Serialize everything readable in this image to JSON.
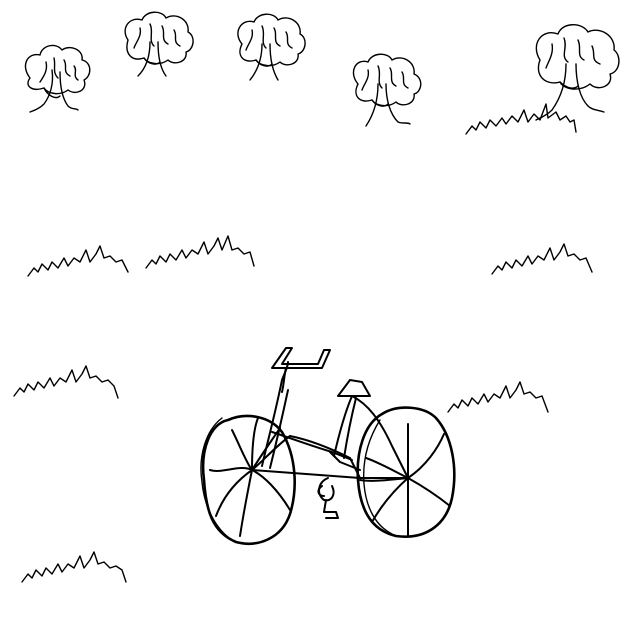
{
  "scene": {
    "background_color": "#ffffff",
    "ink_color": "#000000",
    "trees": [
      {
        "name": "tree-1"
      },
      {
        "name": "tree-2"
      },
      {
        "name": "tree-3"
      },
      {
        "name": "tree-4"
      },
      {
        "name": "tree-5"
      }
    ],
    "grass_tufts": [
      {
        "name": "grass-1"
      },
      {
        "name": "grass-2"
      },
      {
        "name": "grass-3"
      },
      {
        "name": "grass-4"
      },
      {
        "name": "grass-5"
      },
      {
        "name": "grass-6"
      },
      {
        "name": "grass-7"
      }
    ],
    "bicycle": {
      "name": "bicycle"
    }
  }
}
